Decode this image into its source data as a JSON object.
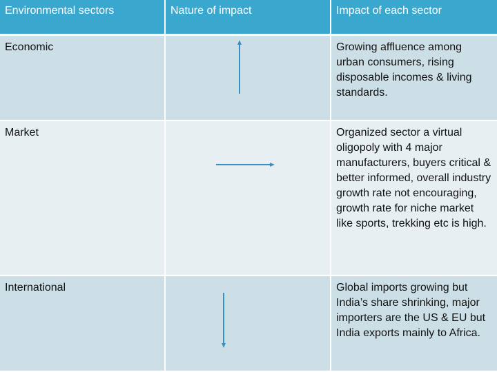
{
  "table": {
    "headers": [
      "Environmental sectors",
      "Nature of impact",
      "Impact of each sector"
    ],
    "rows": [
      {
        "sector": "Economic",
        "impact_direction": "up",
        "description": "Growing affluence among urban consumers, rising disposable incomes & living standards."
      },
      {
        "sector": "Market",
        "impact_direction": "right",
        "description": "Organized sector a virtual oligopoly with 4 major manufacturers, buyers critical & better informed, overall industry  growth rate not encouraging, growth rate for niche  market like sports, trekking etc is high."
      },
      {
        "sector": "International",
        "impact_direction": "down",
        "description": "Global imports growing but India’s share shrinking, major importers are the US & EU but India exports mainly to Africa."
      }
    ]
  },
  "colors": {
    "header_bg": "#3aa7cf",
    "row_dark": "#ccdfe6",
    "row_light": "#e7eff3",
    "arrow": "#3a8fc0"
  }
}
